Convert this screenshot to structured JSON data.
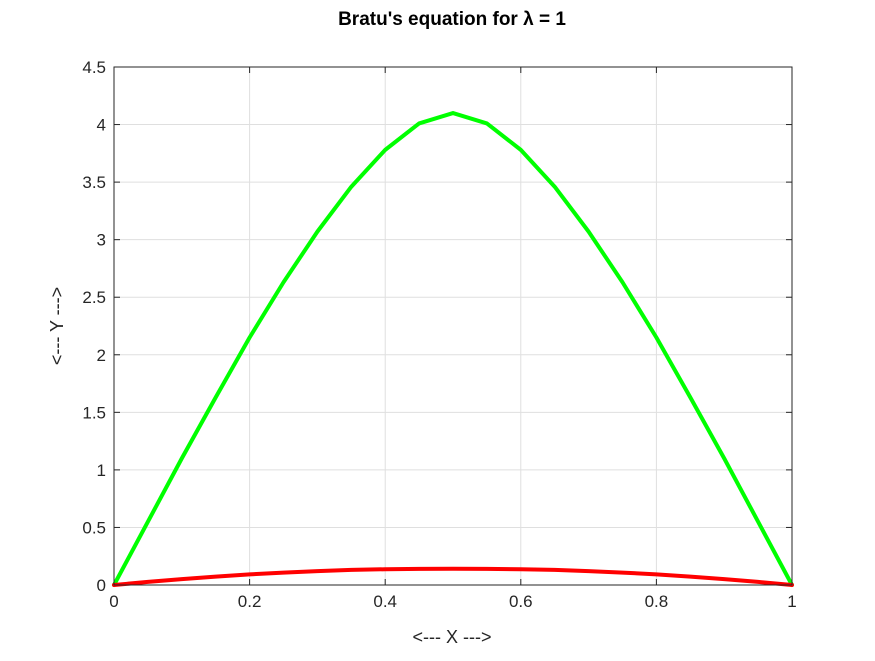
{
  "chart_data": {
    "type": "line",
    "title": "Bratu's equation for λ = 1",
    "xlabel": "<--- X --->",
    "ylabel": "<--- Y --->",
    "xlim": [
      0,
      1
    ],
    "ylim": [
      0,
      4.5
    ],
    "xticks": [
      "0",
      "0.2",
      "0.4",
      "0.6",
      "0.8",
      "1"
    ],
    "yticks": [
      "0",
      "0.5",
      "1",
      "1.5",
      "2",
      "2.5",
      "3",
      "3.5",
      "4",
      "4.5"
    ],
    "xtick_values": [
      0,
      0.2,
      0.4,
      0.6,
      0.8,
      1
    ],
    "ytick_values": [
      0,
      0.5,
      1,
      1.5,
      2,
      2.5,
      3,
      3.5,
      4,
      4.5
    ],
    "grid": true,
    "x": [
      0,
      0.05,
      0.1,
      0.15,
      0.2,
      0.25,
      0.3,
      0.35,
      0.4,
      0.45,
      0.5,
      0.55,
      0.6,
      0.65,
      0.7,
      0.75,
      0.8,
      0.85,
      0.9,
      0.95,
      1
    ],
    "series": [
      {
        "color": "#00ff00",
        "values": [
          0,
          0.55,
          1.1,
          1.63,
          2.15,
          2.63,
          3.07,
          3.46,
          3.78,
          4.01,
          4.1,
          4.01,
          3.78,
          3.46,
          3.07,
          2.63,
          2.15,
          1.63,
          1.1,
          0.55,
          0
        ]
      },
      {
        "color": "#ff0000",
        "values": [
          0,
          0.027,
          0.051,
          0.073,
          0.092,
          0.108,
          0.121,
          0.131,
          0.137,
          0.14,
          0.141,
          0.14,
          0.137,
          0.131,
          0.121,
          0.108,
          0.092,
          0.073,
          0.051,
          0.027,
          0
        ]
      }
    ]
  }
}
